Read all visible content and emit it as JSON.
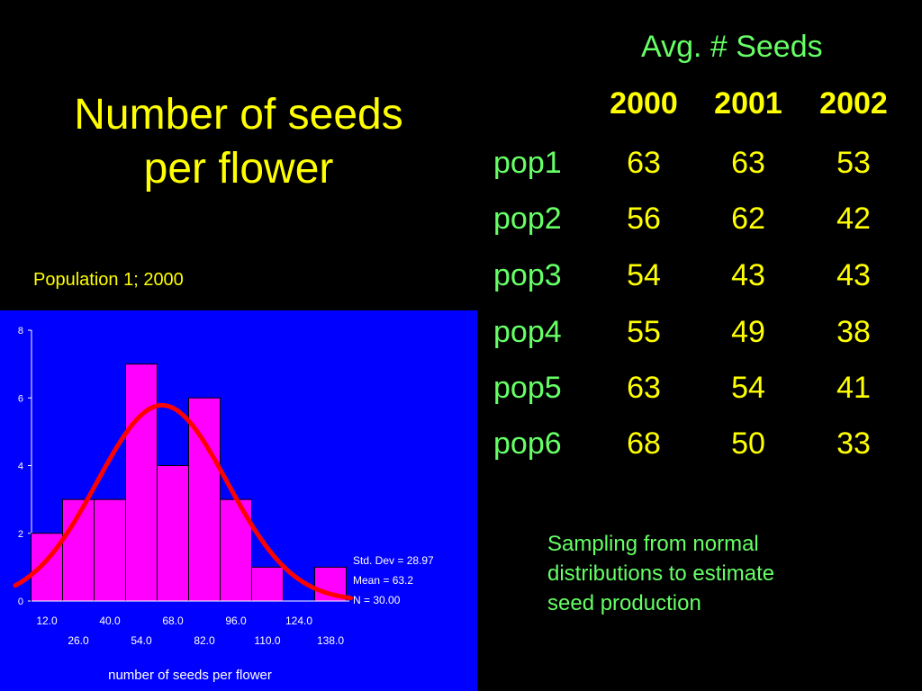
{
  "slide": {
    "title_lines": [
      "Number of seeds",
      "per flower"
    ],
    "chart_caption": "Population 1; 2000",
    "note_lines": [
      "Sampling from  normal",
      "distributions to estimate",
      "seed production"
    ]
  },
  "table": {
    "header": "Avg. # Seeds",
    "years": [
      "2000",
      "2001",
      "2002"
    ],
    "rows": [
      {
        "label": "pop1",
        "values": [
          "63",
          "63",
          "53"
        ]
      },
      {
        "label": "pop2",
        "values": [
          "56",
          "62",
          "42"
        ]
      },
      {
        "label": "pop3",
        "values": [
          "54",
          "43",
          "43"
        ]
      },
      {
        "label": "pop4",
        "values": [
          "55",
          "49",
          "38"
        ]
      },
      {
        "label": "pop5",
        "values": [
          "63",
          "54",
          "41"
        ]
      },
      {
        "label": "pop6",
        "values": [
          "68",
          "50",
          "33"
        ]
      }
    ]
  },
  "colors": {
    "background": "#000000",
    "title": "#ffff00",
    "table_label": "#66ff66",
    "chart_bg": "#0000ff",
    "bar_fill": "#ff00ff",
    "curve": "#ff0000"
  },
  "chart_data": {
    "type": "bar",
    "xlabel": "number of seeds per flower",
    "ylabel": "",
    "ylim": [
      0,
      8
    ],
    "y_ticks": [
      "0",
      "2",
      "4",
      "6",
      "8"
    ],
    "x_tick_labels_upper": [
      "12.0",
      "40.0",
      "68.0",
      "96.0",
      "124.0"
    ],
    "x_tick_labels_lower": [
      "26.0",
      "54.0",
      "82.0",
      "110.0",
      "138.0"
    ],
    "bin_width": 14,
    "bins": [
      {
        "center": 12,
        "count": 2
      },
      {
        "center": 26,
        "count": 3
      },
      {
        "center": 40,
        "count": 3
      },
      {
        "center": 54,
        "count": 7
      },
      {
        "center": 68,
        "count": 4
      },
      {
        "center": 82,
        "count": 6
      },
      {
        "center": 96,
        "count": 3
      },
      {
        "center": 110,
        "count": 1
      },
      {
        "center": 124,
        "count": 0
      },
      {
        "center": 138,
        "count": 1
      }
    ],
    "normal_curve": {
      "mean": 63.2,
      "std_dev": 28.97,
      "n": 30
    },
    "stats_lines": [
      "Std. Dev = 28.97",
      "Mean = 63.2",
      "N = 30.00"
    ],
    "grid": false
  }
}
